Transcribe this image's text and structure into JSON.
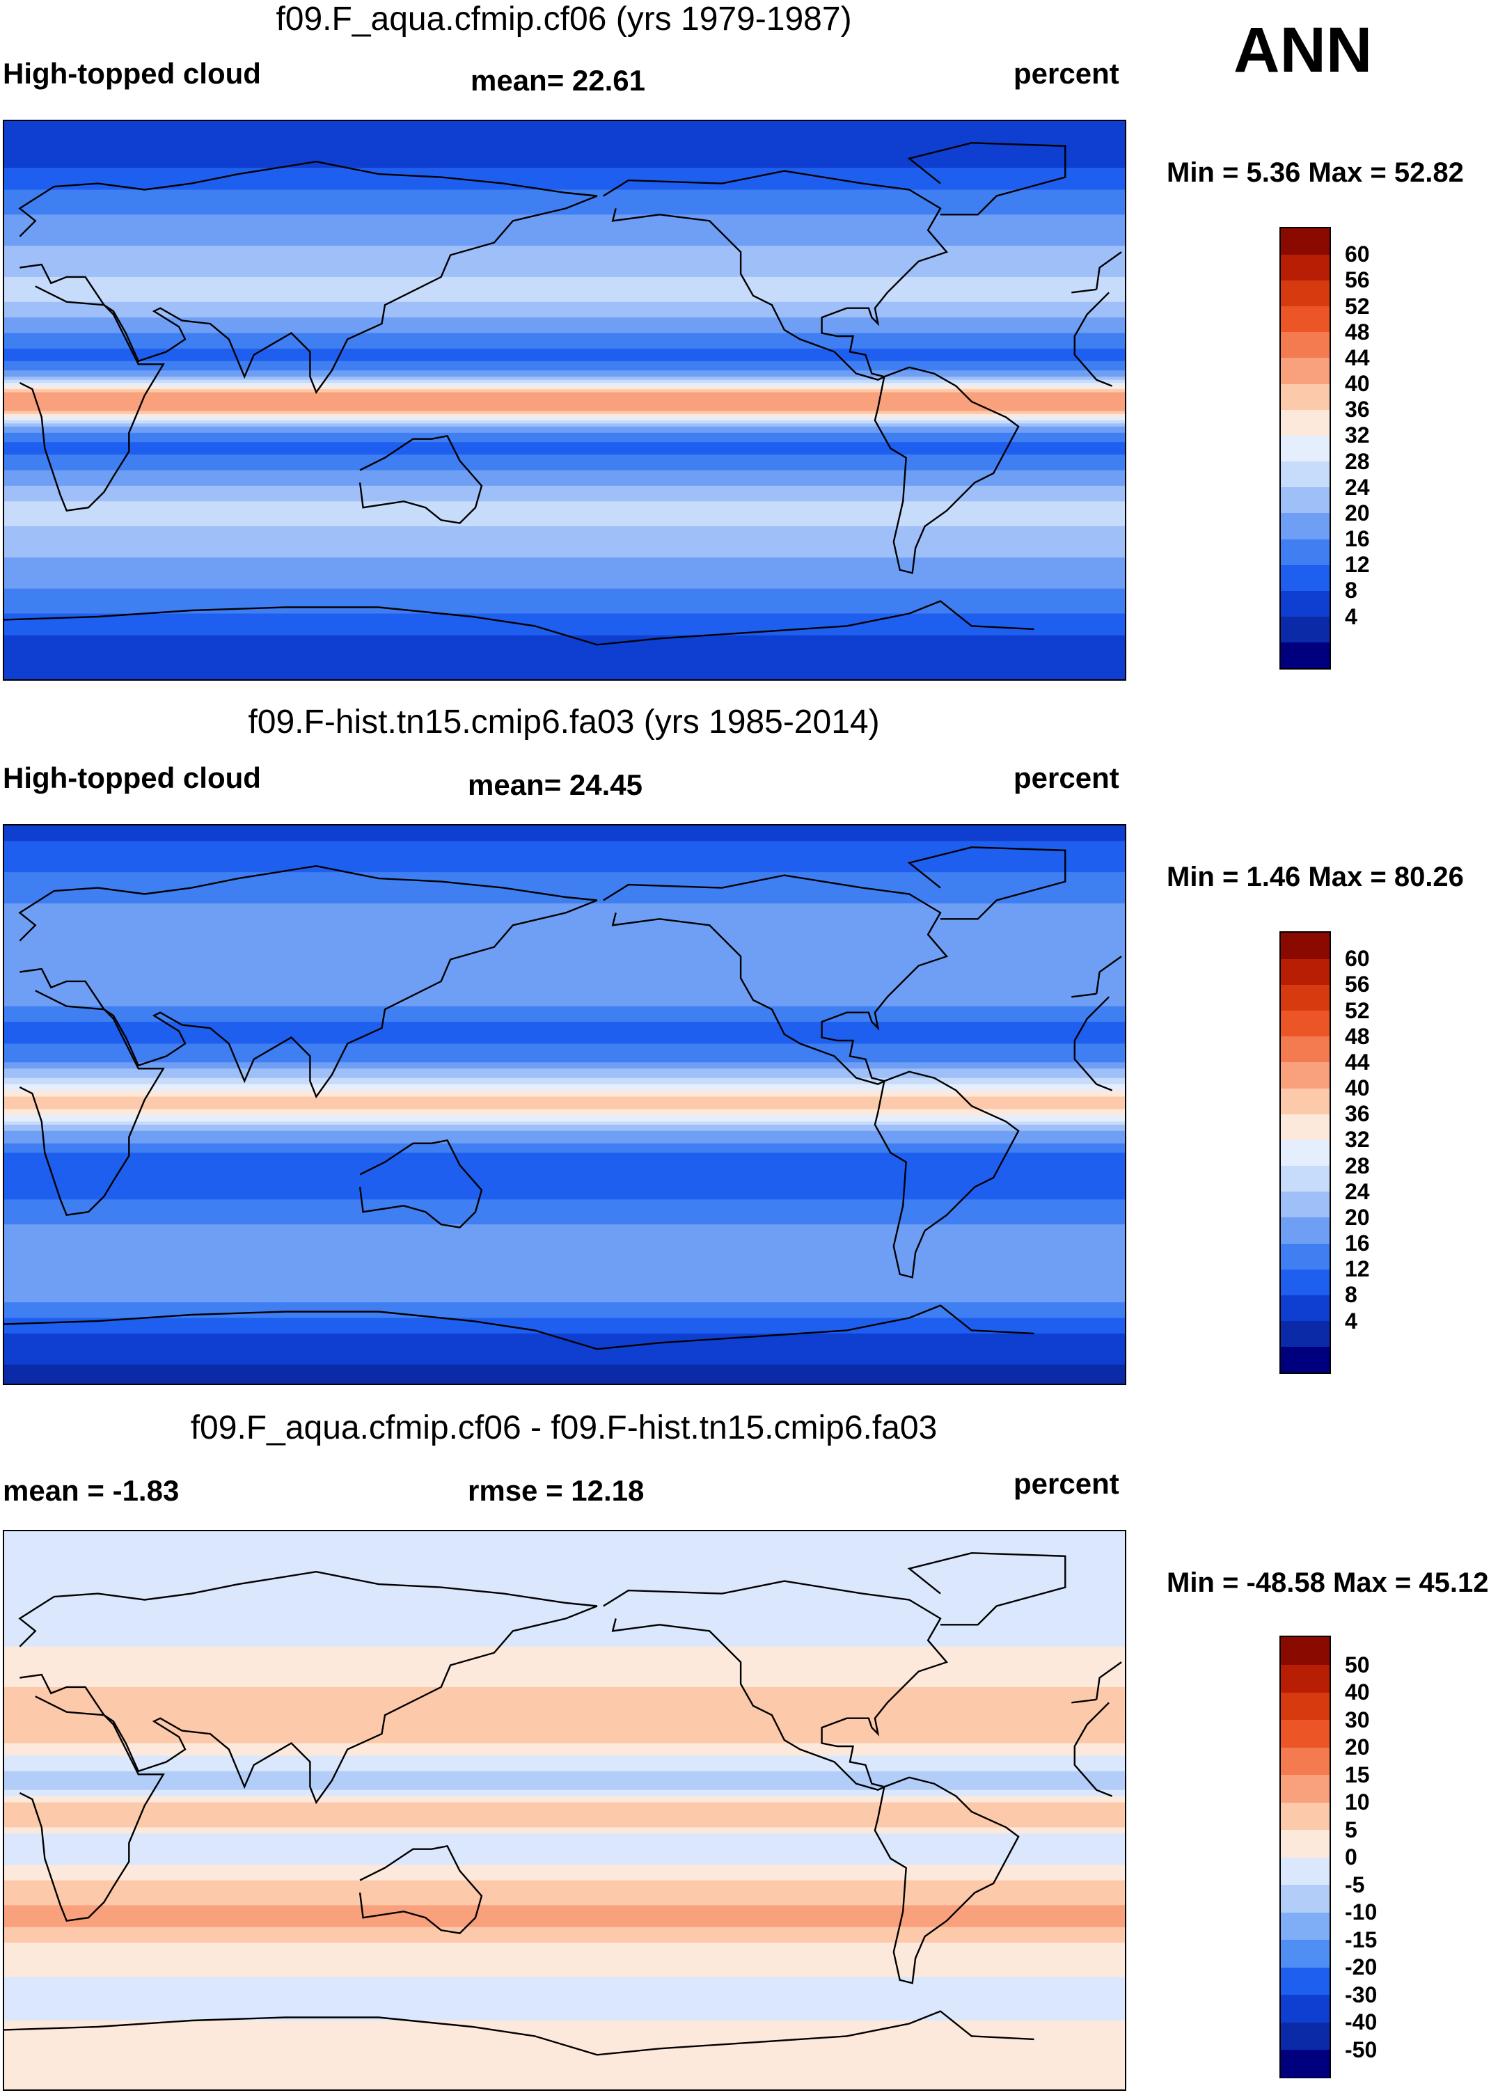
{
  "season": "ANN",
  "units_label": "percent",
  "panels": [
    {
      "title": "f09.F_aqua.cfmip.cf06 (yrs 1979-1987)",
      "left_label": "High-topped cloud",
      "center_label": "mean=  22.61",
      "right_label": "percent",
      "minmax": "Min =   5.36 Max =  52.82"
    },
    {
      "title": "f09.F-hist.tn15.cmip6.fa03 (yrs 1985-2014)",
      "left_label": "High-topped cloud",
      "center_label": "mean=  24.45",
      "right_label": "percent",
      "minmax": "Min =   1.46 Max =  80.26"
    },
    {
      "title": "f09.F_aqua.cfmip.cf06 - f09.F-hist.tn15.cmip6.fa03",
      "left_label": "mean =  -1.83",
      "center_label": "rmse =  12.18",
      "right_label": "percent",
      "minmax": "Min = -48.58 Max =  45.12"
    }
  ],
  "colors": {
    "abs_scale": [
      "#00007f",
      "#0a2aa8",
      "#0f3fd0",
      "#1f5fef",
      "#3f7ff2",
      "#6f9ff5",
      "#9fbff8",
      "#c7dcfb",
      "#e4eefd",
      "#fde9dc",
      "#fcc9ab",
      "#f9a07d",
      "#f47a4f",
      "#ec5526",
      "#d83a10",
      "#b81e04",
      "#8a0a00"
    ],
    "diff_scale": [
      "#00007f",
      "#0a2aa8",
      "#0f3fd0",
      "#1f5fef",
      "#4f8ff3",
      "#80aef6",
      "#b3cdf9",
      "#dae7fc",
      "#fde9dc",
      "#fcc9ab",
      "#f9a07d",
      "#f47a4f",
      "#ec5526",
      "#d83a10",
      "#b81e04",
      "#8a0a00"
    ]
  },
  "chart_data": [
    {
      "type": "heatmap",
      "title": "f09.F_aqua.cfmip.cf06 (yrs 1979-1987)",
      "variable": "High-topped cloud",
      "units": "percent",
      "mean": 22.61,
      "min": 5.36,
      "max": 52.82,
      "colorbar_levels": [
        4,
        8,
        12,
        16,
        20,
        24,
        28,
        32,
        36,
        40,
        44,
        48,
        52,
        56,
        60
      ],
      "colorbar_tick_labels": [
        "60",
        "56",
        "52",
        "48",
        "44",
        "40",
        "36",
        "32",
        "28",
        "24",
        "20",
        "16",
        "12",
        "8",
        "4"
      ],
      "zonal_profile": {
        "lat": [
          90,
          75,
          60,
          45,
          35,
          25,
          15,
          8,
          3,
          0,
          -3,
          -8,
          -15,
          -25,
          -35,
          -45,
          -60,
          -75,
          -90
        ],
        "value": [
          8,
          12,
          20,
          26,
          30,
          22,
          14,
          22,
          46,
          48,
          46,
          22,
          14,
          22,
          30,
          26,
          20,
          12,
          8
        ]
      }
    },
    {
      "type": "heatmap",
      "title": "f09.F-hist.tn15.cmip6.fa03 (yrs 1985-2014)",
      "variable": "High-topped cloud",
      "units": "percent",
      "mean": 24.45,
      "min": 1.46,
      "max": 80.26,
      "colorbar_levels": [
        4,
        8,
        12,
        16,
        20,
        24,
        28,
        32,
        36,
        40,
        44,
        48,
        52,
        56,
        60
      ],
      "colorbar_tick_labels": [
        "60",
        "56",
        "52",
        "48",
        "44",
        "40",
        "36",
        "32",
        "28",
        "24",
        "20",
        "16",
        "12",
        "8",
        "4"
      ],
      "zonal_profile": {
        "lat": [
          90,
          75,
          60,
          45,
          35,
          25,
          15,
          8,
          3,
          0,
          -3,
          -8,
          -15,
          -25,
          -35,
          -45,
          -60,
          -75,
          -90
        ],
        "value": [
          10,
          16,
          22,
          24,
          22,
          14,
          18,
          30,
          40,
          42,
          36,
          24,
          16,
          14,
          18,
          24,
          22,
          10,
          6
        ]
      }
    },
    {
      "type": "heatmap",
      "title": "f09.F_aqua.cfmip.cf06 - f09.F-hist.tn15.cmip6.fa03",
      "units": "percent",
      "mean": -1.83,
      "rmse": 12.18,
      "min": -48.58,
      "max": 45.12,
      "colorbar_levels": [
        -50,
        -40,
        -30,
        -20,
        -15,
        -10,
        -5,
        0,
        5,
        10,
        15,
        20,
        30,
        40,
        50
      ],
      "colorbar_tick_labels": [
        "50",
        "40",
        "30",
        "20",
        "15",
        "10",
        "5",
        "0",
        "-5",
        "-10",
        "-15",
        "-20",
        "-30",
        "-40",
        "-50"
      ],
      "zonal_profile": {
        "lat": [
          90,
          75,
          60,
          45,
          35,
          25,
          15,
          8,
          3,
          0,
          -3,
          -8,
          -15,
          -25,
          -35,
          -45,
          -60,
          -75,
          -90
        ],
        "value": [
          0,
          -4,
          -2,
          2,
          8,
          8,
          -4,
          -8,
          6,
          6,
          10,
          -2,
          -2,
          8,
          12,
          2,
          -2,
          2,
          2
        ]
      }
    }
  ]
}
